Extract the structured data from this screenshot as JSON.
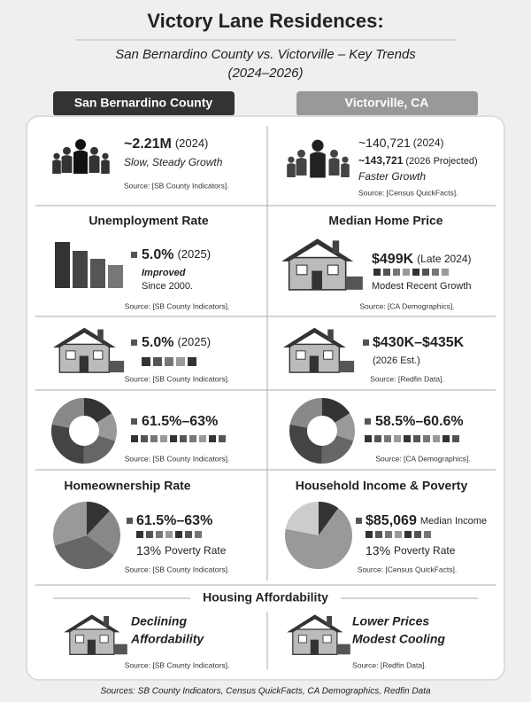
{
  "header": {
    "title": "Victory Lane Residences:",
    "subtitle": "San Bernardino County vs. Victorville – Key Trends",
    "years": "(2024–2026)"
  },
  "columns": [
    "San Bernardino County",
    "Victorville, CA"
  ],
  "population": {
    "left": {
      "value": "~2.21M",
      "year": "(2024)",
      "note": "Slow, Steady Growth",
      "source": "Source: [SB County Indicators]."
    },
    "right": {
      "value": "~140,721",
      "year": "(2024)",
      "value2": "~143,721",
      "year2": "(2026 Projected)",
      "note": "Faster Growth",
      "source": "Source: [Census QuickFacts]."
    }
  },
  "unemployment": {
    "heading": "Unemployment Rate",
    "value": "5.0%",
    "year": "(2025)",
    "note1": "Improved",
    "note2": "Since 2000.",
    "source": "Source: [SB County Indicators]."
  },
  "median_home_price": {
    "heading": "Median Home Price",
    "value": "$499K",
    "year": "(Late 2024)",
    "note": "Modest Recent Growth",
    "source": "Source: [CA Demographics]."
  },
  "row3": {
    "left": {
      "value": "5.0%",
      "year": "(2025)",
      "source": "Source: [SB County Indicators]."
    },
    "right": {
      "value": "$430K–$435K",
      "year": "(2026 Est.)",
      "source": "Source: [Redfin Data]."
    }
  },
  "row4": {
    "left": {
      "value": "61.5%–63%",
      "source": "Source: [SB County Indicators]."
    },
    "right": {
      "value": "58.5%–60.6%",
      "source": "Source: [CA Demographics]."
    }
  },
  "homeownership": {
    "heading": "Homeownership Rate",
    "value": "61.5%–63%",
    "poverty": "13%",
    "poverty_label": "Poverty Rate",
    "source": "Source: [SB County Indicators]."
  },
  "income": {
    "heading": "Household Income & Poverty",
    "value": "$85,069",
    "value_label": "Median Income",
    "poverty": "13%",
    "poverty_label": "Poverty Rate",
    "source": "Source: [Census QuickFacts]."
  },
  "affordability": {
    "heading": "Housing Affordability",
    "left": {
      "line1": "Declining",
      "line2": "Affordability",
      "source": "Source: [SB County Indicators]."
    },
    "right": {
      "line1": "Lower Prices",
      "line2": "Modest Cooling",
      "source": "Source: [Redfin Data]."
    }
  },
  "footer": "Sources: SB County Indicators, Census QuickFacts, CA Demographics, Redfin Data"
}
